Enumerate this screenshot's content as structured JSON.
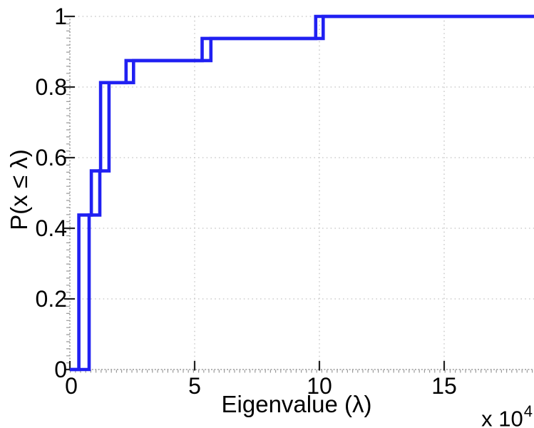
{
  "chart_data": {
    "type": "line",
    "subtype": "empirical-cdf-stairs",
    "title": "",
    "xlabel": "Eigenvalue (λ)",
    "ylabel": "P(x ≤ λ)",
    "x_multiplier_label": "x 10",
    "x_multiplier_exponent": "4",
    "x_unit_scale": "1e4",
    "xlim": [
      0,
      18.6
    ],
    "ylim": [
      0,
      1
    ],
    "xticks": [
      0,
      5,
      10,
      15
    ],
    "xtick_labels": [
      "0",
      "5",
      "10",
      "15"
    ],
    "yticks": [
      0,
      0.2,
      0.4,
      0.6,
      0.8,
      1
    ],
    "ytick_labels": [
      "0",
      "0.2",
      "0.4",
      "0.6",
      "0.8",
      "1"
    ],
    "grid": true,
    "grid_style": "dotted",
    "legend": "none",
    "n_samples_per_curve": 16,
    "probability_levels": [
      0.4375,
      0.5625,
      0.8125,
      0.875,
      0.9375,
      1.0
    ],
    "series": [
      {
        "name": "cdf-curve-1",
        "jumps": [
          {
            "x": 0.36,
            "p": 0.4375
          },
          {
            "x": 0.86,
            "p": 0.5625
          },
          {
            "x": 1.23,
            "p": 0.8125
          },
          {
            "x": 2.25,
            "p": 0.875
          },
          {
            "x": 5.3,
            "p": 0.9375
          },
          {
            "x": 9.85,
            "p": 1.0
          }
        ]
      },
      {
        "name": "cdf-curve-2",
        "jumps": [
          {
            "x": 0.77,
            "p": 0.4375
          },
          {
            "x": 1.2,
            "p": 0.5625
          },
          {
            "x": 1.57,
            "p": 0.8125
          },
          {
            "x": 2.55,
            "p": 0.875
          },
          {
            "x": 5.65,
            "p": 0.9375
          },
          {
            "x": 10.15,
            "p": 1.0
          }
        ]
      }
    ],
    "colors": {
      "line": "#2020f2",
      "grid": "#c4c4c4",
      "axis": "#9a9a9a",
      "tick": "#222222",
      "text": "#000000",
      "background": "#ffffff"
    }
  }
}
